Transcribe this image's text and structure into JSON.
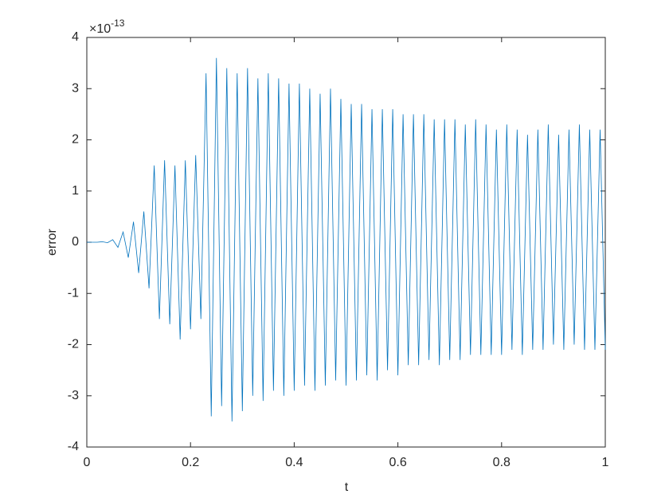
{
  "chart_data": {
    "type": "line",
    "x_label": "t",
    "y_label": "error",
    "y_multiplier": {
      "base": "×10",
      "exponent": "-13"
    },
    "color": "#0072bd",
    "x": [
      0,
      0.01,
      0.02,
      0.03,
      0.04,
      0.05,
      0.06,
      0.07,
      0.08,
      0.09,
      0.1,
      0.11,
      0.12,
      0.13,
      0.14,
      0.15,
      0.16,
      0.17,
      0.18,
      0.19,
      0.2,
      0.21,
      0.22,
      0.23,
      0.24,
      0.25,
      0.26,
      0.27,
      0.28,
      0.29,
      0.3,
      0.31,
      0.32,
      0.33,
      0.34,
      0.35,
      0.36,
      0.37,
      0.38,
      0.39,
      0.4,
      0.41,
      0.42,
      0.43,
      0.44,
      0.45,
      0.46,
      0.47,
      0.48,
      0.49,
      0.5,
      0.51,
      0.52,
      0.53,
      0.54,
      0.55,
      0.56,
      0.57,
      0.58,
      0.59,
      0.6,
      0.61,
      0.62,
      0.63,
      0.64,
      0.65,
      0.66,
      0.67,
      0.68,
      0.69,
      0.7,
      0.71,
      0.72,
      0.73,
      0.74,
      0.75,
      0.76,
      0.77,
      0.78,
      0.79,
      0.8,
      0.81,
      0.82,
      0.83,
      0.84,
      0.85,
      0.86,
      0.87,
      0.88,
      0.89,
      0.9,
      0.91,
      0.92,
      0.93,
      0.94,
      0.95,
      0.96,
      0.97,
      0.98,
      0.99,
      1
    ],
    "values": [
      0,
      0,
      0,
      0.01,
      -0.01,
      0.05,
      -0.1,
      0.2,
      -0.3,
      0.4,
      -0.6,
      0.6,
      -0.9,
      1.5,
      -1.5,
      1.6,
      -1.6,
      1.5,
      -1.9,
      1.6,
      -1.7,
      1.7,
      -1.5,
      3.3,
      -3.4,
      3.6,
      -3.2,
      3.4,
      -3.5,
      3.3,
      -3.3,
      3.4,
      -3.0,
      3.2,
      -3.1,
      3.3,
      -2.9,
      3.2,
      -3.0,
      3.1,
      -2.9,
      3.1,
      -2.8,
      3.0,
      -2.9,
      2.9,
      -2.8,
      3.0,
      -2.7,
      2.8,
      -2.8,
      2.7,
      -2.7,
      2.7,
      -2.6,
      2.6,
      -2.7,
      2.6,
      -2.5,
      2.6,
      -2.6,
      2.5,
      -2.4,
      2.5,
      -2.4,
      2.5,
      -2.3,
      2.4,
      -2.4,
      2.4,
      -2.3,
      2.4,
      -2.3,
      2.3,
      -2.2,
      2.4,
      -2.2,
      2.3,
      -2.2,
      2.2,
      -2.2,
      2.3,
      -2.1,
      2.2,
      -2.2,
      2.1,
      -2.1,
      2.2,
      -2.1,
      2.3,
      -2.0,
      2.1,
      -2.1,
      2.2,
      -2.0,
      2.3,
      -2.1,
      2.2,
      -2.1,
      2.2,
      -2.1
    ],
    "xlim": [
      0,
      1
    ],
    "ylim": [
      -4,
      4
    ],
    "xticks": [
      0,
      0.2,
      0.4,
      0.6,
      0.8,
      1
    ],
    "yticks": [
      -4,
      -3,
      -2,
      -1,
      0,
      1,
      2,
      3,
      4
    ]
  }
}
